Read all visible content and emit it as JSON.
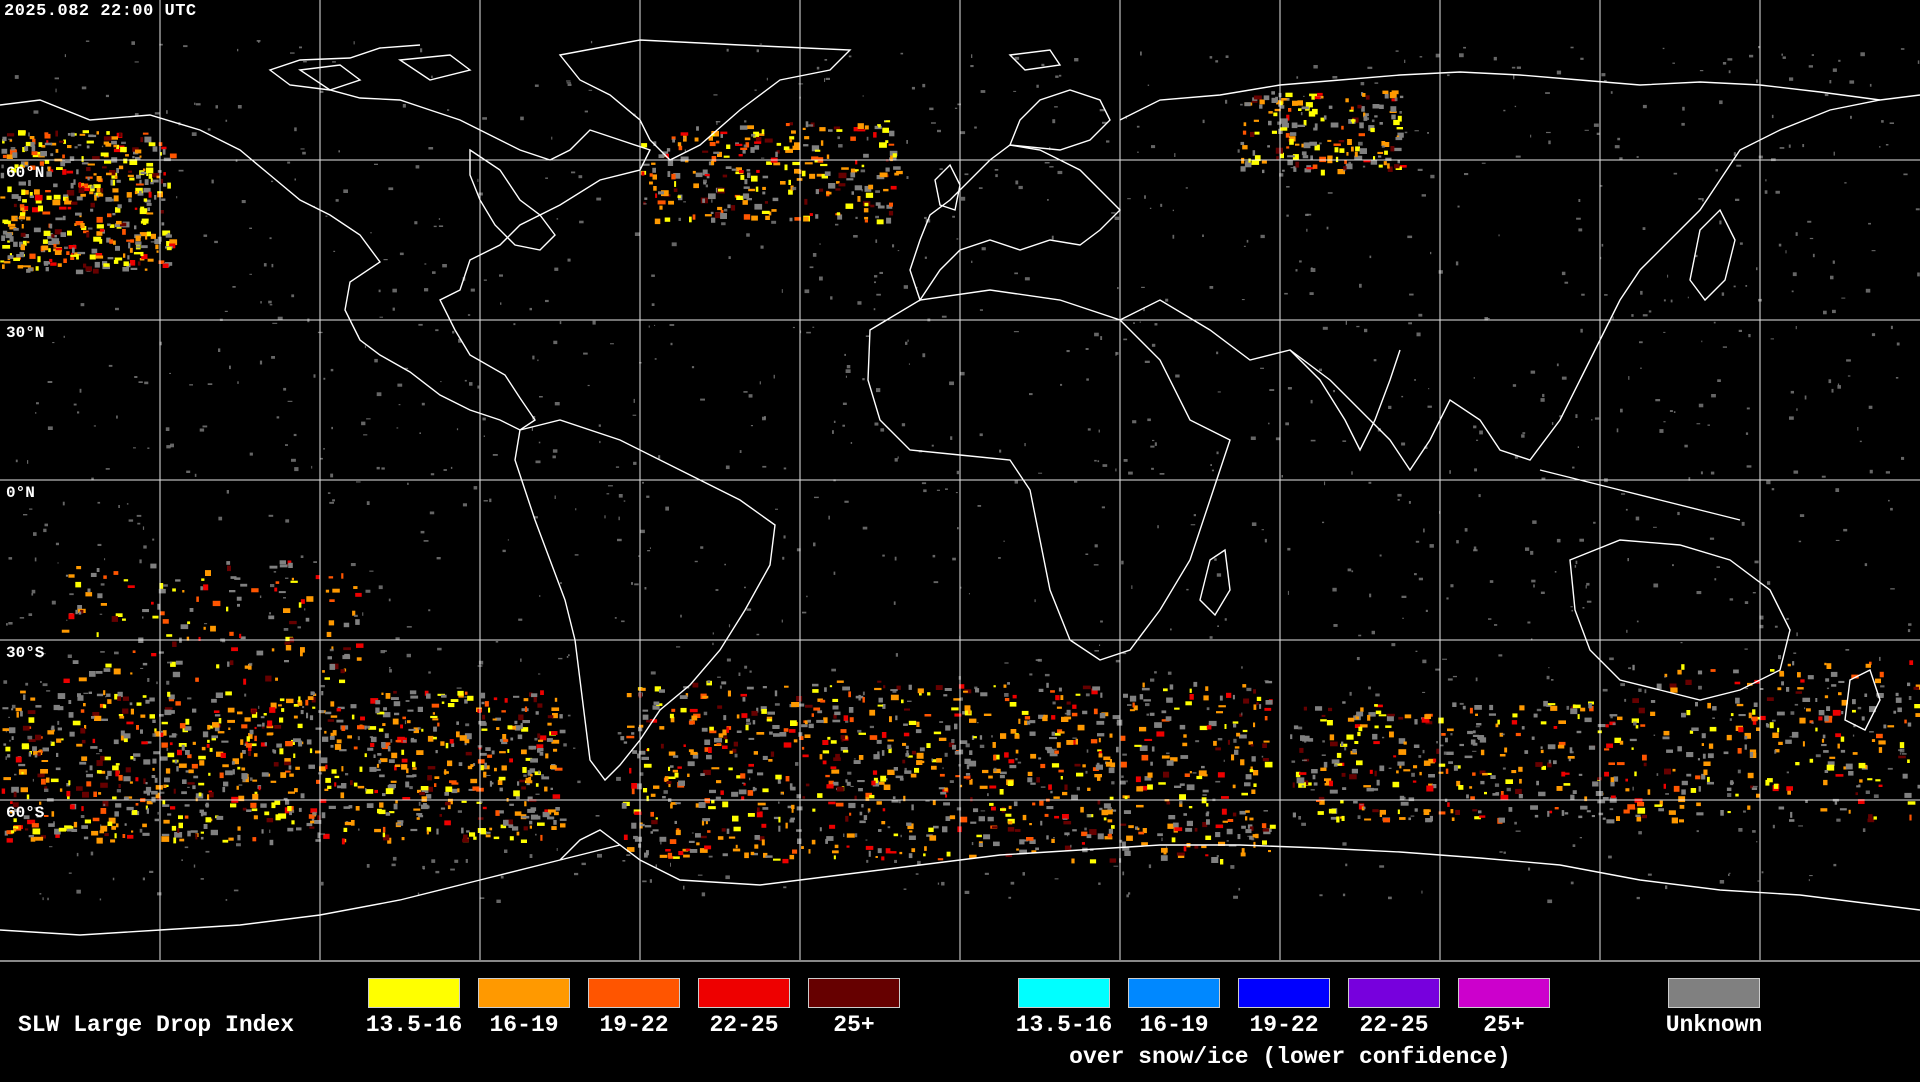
{
  "header": {
    "timestamp": "2025.082 22:00 UTC"
  },
  "map": {
    "latitude_labels": [
      "60°N",
      "30°N",
      "0°N",
      "30°S",
      "60°S"
    ],
    "colors": {
      "background": "#000000",
      "grid": "#ffffff",
      "coast": "#ffffff",
      "unknown": "#808080"
    }
  },
  "legend": {
    "title": "SLW Large Drop Index",
    "liquid_classes": [
      {
        "label": "13.5-16",
        "color": "#ffff00"
      },
      {
        "label": "16-19",
        "color": "#ff9900"
      },
      {
        "label": "19-22",
        "color": "#ff5500"
      },
      {
        "label": "22-25",
        "color": "#ee0000"
      },
      {
        "label": "25+",
        "color": "#660000"
      }
    ],
    "snow_ice_classes": [
      {
        "label": "13.5-16",
        "color": "#00ffff"
      },
      {
        "label": "16-19",
        "color": "#0088ff"
      },
      {
        "label": "19-22",
        "color": "#0000ff"
      },
      {
        "label": "22-25",
        "color": "#7700dd"
      },
      {
        "label": "25+",
        "color": "#cc00cc"
      }
    ],
    "snow_ice_note": "over snow/ice (lower confidence)",
    "unknown": {
      "label": "Unknown",
      "color": "#808080"
    }
  }
}
